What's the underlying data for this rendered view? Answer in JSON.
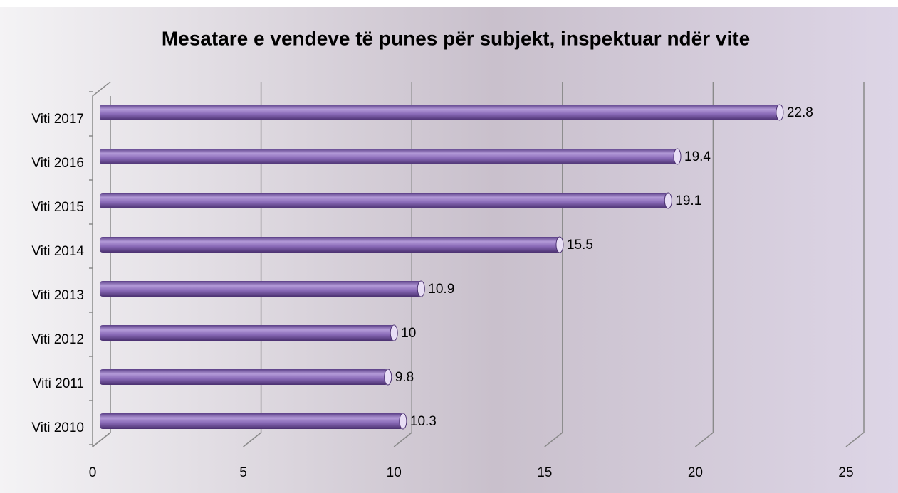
{
  "chart_data": {
    "type": "bar",
    "orientation": "horizontal",
    "title": "Mesatare e vendeve të punes për subjekt, inspektuar ndër vite",
    "categories": [
      "Viti 2017",
      "Viti 2016",
      "Viti 2015",
      "Viti 2014",
      "Viti 2013",
      "Viti 2012",
      "Viti 2011",
      "Viti 2010"
    ],
    "values": [
      22.8,
      19.4,
      19.1,
      15.5,
      10.9,
      10,
      9.8,
      10.3
    ],
    "color": "#8a6bb8",
    "xlim": [
      0,
      25
    ],
    "xticks": [
      0,
      5,
      10,
      15,
      20,
      25
    ],
    "grid": true
  }
}
